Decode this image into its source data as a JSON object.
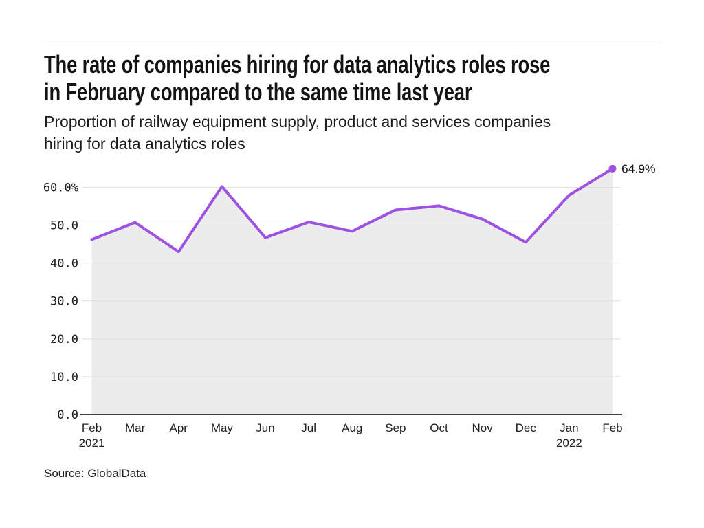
{
  "header": {
    "title_lines": [
      "The rate of companies hiring for data analytics roles rose",
      "in February compared to the same time last year"
    ],
    "subtitle_lines": [
      "Proportion of railway equipment supply, product and services companies",
      "hiring for data analytics roles"
    ]
  },
  "footer": {
    "source": "Source: GlobalData"
  },
  "chart_data": {
    "type": "line",
    "title": "The rate of companies hiring for data analytics roles rose in February compared to the same time last year",
    "subtitle": "Proportion of railway equipment supply, product and services companies hiring for data analytics roles",
    "categories": [
      "Feb",
      "Mar",
      "Apr",
      "May",
      "Jun",
      "Jul",
      "Aug",
      "Sep",
      "Oct",
      "Nov",
      "Dec",
      "Jan",
      "Feb"
    ],
    "category_sublabels": [
      "2021",
      "",
      "",
      "",
      "",
      "",
      "",
      "",
      "",
      "",
      "",
      "2022",
      ""
    ],
    "values": [
      46.2,
      50.7,
      43.0,
      60.2,
      46.7,
      50.8,
      48.4,
      54.0,
      55.1,
      51.6,
      45.5,
      57.9,
      64.9
    ],
    "end_label": "64.9%",
    "y_ticks": [
      0,
      10,
      20,
      30,
      40,
      50,
      60
    ],
    "y_tick_labels": [
      "0.0",
      "10.0",
      "20.0",
      "30.0",
      "40.0",
      "50.0",
      "60.0%"
    ],
    "ylim": [
      0,
      66
    ],
    "grid": "horizontal",
    "legend": "none",
    "source": "Source: GlobalData",
    "colors": {
      "line": "#9e51e3",
      "dot": "#9e51e3",
      "area": "#ececec",
      "grid": "#dedede",
      "axis": "#3f3f3f",
      "tick_text": "#212121",
      "label_text": "#141414"
    }
  }
}
